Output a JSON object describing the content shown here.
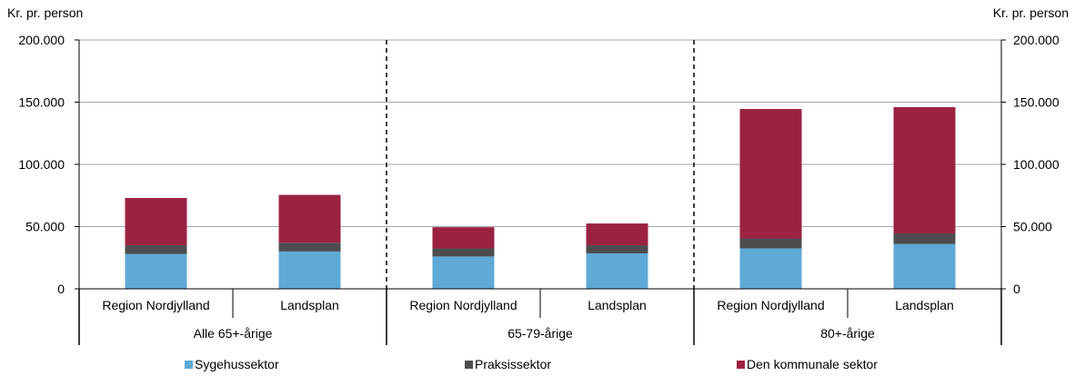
{
  "chart_data": {
    "type": "bar",
    "stacked": true,
    "ylabel_left": "Kr. pr. person",
    "ylabel_right": "Kr. pr. person",
    "ylim": [
      0,
      200000
    ],
    "yticks": [
      0,
      50000,
      100000,
      150000,
      200000
    ],
    "ytick_labels": [
      "0",
      "50.000",
      "100.000",
      "150.000",
      "200.000"
    ],
    "grid": true,
    "legend_position": "bottom",
    "groups": [
      {
        "label": "Alle 65+-årige",
        "categories": [
          "Region Nordjylland",
          "Landsplan"
        ]
      },
      {
        "label": "65-79-årige",
        "categories": [
          "Region Nordjylland",
          "Landsplan"
        ]
      },
      {
        "label": "80+-årige",
        "categories": [
          "Region Nordjylland",
          "Landsplan"
        ]
      }
    ],
    "series": [
      {
        "name": "Sygehussektor",
        "color": "#5fa9d6",
        "values": [
          28000,
          30000,
          26000,
          28500,
          32500,
          36000
        ]
      },
      {
        "name": "Praksissektor",
        "color": "#4d4d4f",
        "values": [
          7000,
          7000,
          6500,
          6500,
          8000,
          8500
        ]
      },
      {
        "name": "Den kommunale sektor",
        "color": "#9b2243",
        "values": [
          38000,
          38500,
          17000,
          17500,
          104000,
          101500
        ]
      }
    ]
  }
}
